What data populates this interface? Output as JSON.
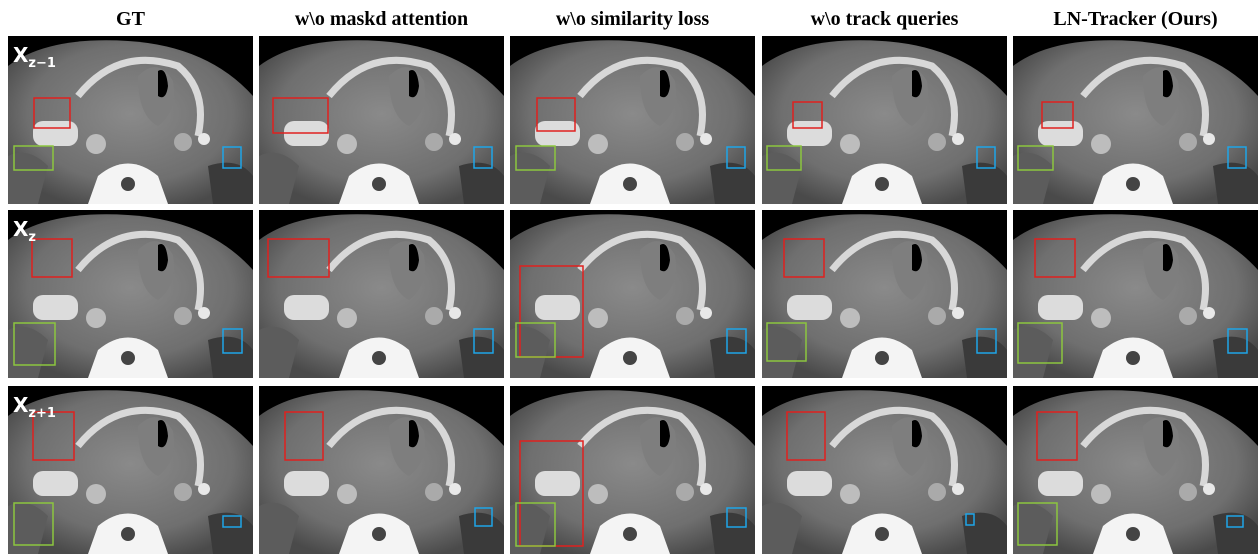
{
  "headers": [
    "GT",
    "w\\o maskd attention",
    "w\\o similarity loss",
    "w\\o track queries",
    "LN-Tracker (Ours)"
  ],
  "row_labels": [
    {
      "base": "X",
      "sub": "z−1"
    },
    {
      "base": "X",
      "sub": "z"
    },
    {
      "base": "X",
      "sub": "z+1"
    }
  ]
}
